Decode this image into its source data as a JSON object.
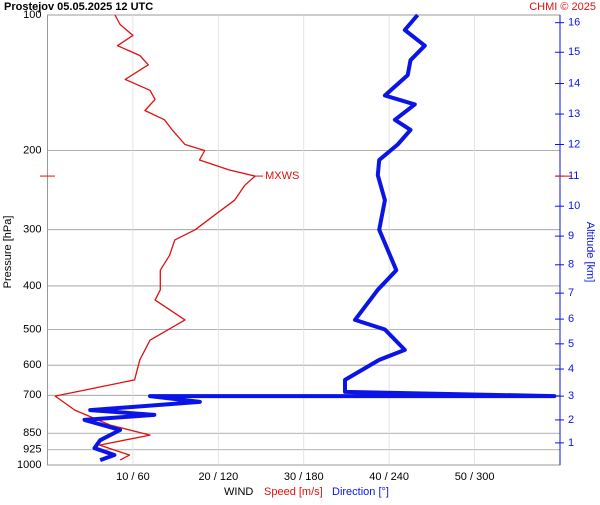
{
  "chart_data": {
    "type": "profile",
    "title": "Prostejov    05.05.2025 12 UTC",
    "credit": "CHMI © 2025",
    "xlabel": "WIND",
    "ylabel": "Pressure [hPa]",
    "y2label": "Altitude [km]",
    "xlim": [
      0,
      60
    ],
    "x2lim": [
      0,
      360
    ],
    "xticks": [
      {
        "value": 10,
        "label": "10 / 60"
      },
      {
        "value": 20,
        "label": "20 / 120"
      },
      {
        "value": 30,
        "label": "30 / 180"
      },
      {
        "value": 40,
        "label": "40 / 240"
      },
      {
        "value": 50,
        "label": "50 / 300"
      }
    ],
    "ylim": [
      100,
      1000
    ],
    "log_y": true,
    "inverted_y": true,
    "yticks": [
      100,
      200,
      300,
      400,
      500,
      600,
      700,
      850,
      925,
      1000
    ],
    "y2ticks": [
      {
        "value": 1,
        "pressure": 893
      },
      {
        "value": 2,
        "pressure": 794
      },
      {
        "value": 3,
        "pressure": 703
      },
      {
        "value": 4,
        "pressure": 612
      },
      {
        "value": 5,
        "pressure": 538
      },
      {
        "value": 6,
        "pressure": 474
      },
      {
        "value": 7,
        "pressure": 415
      },
      {
        "value": 8,
        "pressure": 359
      },
      {
        "value": 9,
        "pressure": 310
      },
      {
        "value": 10,
        "pressure": 266
      },
      {
        "value": 11,
        "pressure": 228
      },
      {
        "value": 12,
        "pressure": 194
      },
      {
        "value": 13,
        "pressure": 166
      },
      {
        "value": 14,
        "pressure": 142
      },
      {
        "value": 15,
        "pressure": 121
      },
      {
        "value": 16,
        "pressure": 104
      }
    ],
    "grid": true,
    "annotation": {
      "text": "MXWS",
      "pressure": 228
    },
    "series": [
      {
        "name": "Speed [m/s]",
        "color": "#e01010",
        "pressure": [
          100,
          105,
          111,
          117,
          123,
          129,
          139,
          147,
          154,
          163,
          171,
          180,
          194,
          200,
          210,
          221,
          228,
          239,
          258,
          278,
          300,
          316,
          342,
          369,
          408,
          430,
          476,
          528,
          584,
          647,
          703,
          755,
          815,
          858,
          903,
          950,
          975
        ],
        "values": [
          7.9,
          8.5,
          10,
          8.2,
          10.8,
          11.8,
          9.1,
          12,
          12.6,
          11.4,
          13.7,
          14.6,
          16.1,
          18.4,
          17.8,
          21.3,
          24.3,
          23.1,
          21.9,
          19.6,
          17.3,
          14.9,
          14.3,
          13.2,
          13.2,
          12.6,
          16.1,
          12,
          10.8,
          10.2,
          0.9,
          3.2,
          7.3,
          12,
          6.1,
          9.6,
          8.5
        ]
      },
      {
        "name": "Direction [°]",
        "color": "#0a14e6",
        "axis": "x2",
        "pressure": [
          100,
          108,
          117,
          126,
          136,
          151,
          158,
          171,
          180,
          194,
          210,
          227,
          258,
          300,
          369,
          408,
          476,
          500,
          555,
          584,
          647,
          688,
          703,
          703,
          724,
          755,
          774,
          794,
          836,
          881,
          917,
          950,
          975
        ],
        "values": [
          260,
          251,
          265,
          255,
          253,
          237,
          258,
          244,
          255,
          246,
          233,
          232,
          237,
          233,
          245,
          232,
          216,
          237,
          251,
          233,
          209,
          209,
          356,
          72,
          107,
          30,
          75,
          26,
          51,
          37,
          33,
          47,
          37
        ]
      }
    ]
  }
}
